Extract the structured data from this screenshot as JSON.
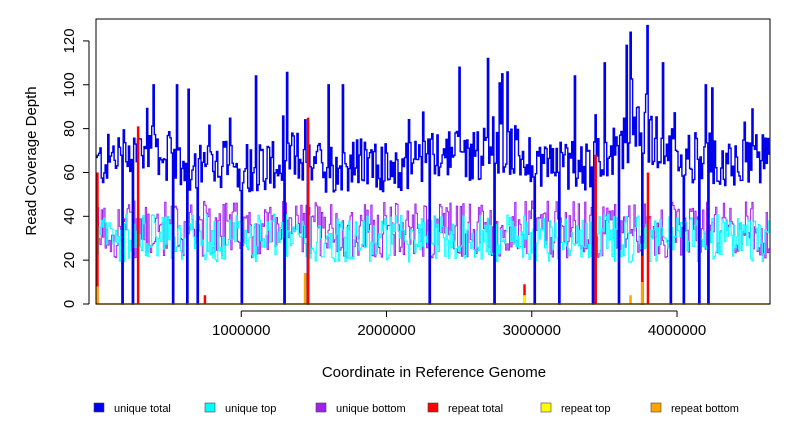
{
  "chart_data": {
    "type": "line",
    "title": "",
    "xlabel": "Coordinate in Reference Genome",
    "ylabel": "Read Coverage Depth",
    "xlim": [
      0,
      4640000
    ],
    "ylim": [
      0,
      130
    ],
    "xticks": [
      1000000,
      2000000,
      3000000,
      4000000
    ],
    "xtick_labels": [
      "1000000",
      "2000000",
      "3000000",
      "4000000"
    ],
    "yticks": [
      0,
      20,
      40,
      60,
      80,
      100,
      120
    ],
    "ytick_labels": [
      "0",
      "20",
      "40",
      "60",
      "80",
      "100",
      "120"
    ],
    "legend_position": "bottom",
    "series": [
      {
        "name": "unique total",
        "color": "#0000ee",
        "x": [
          0,
          200000,
          400000,
          600000,
          800000,
          1000000,
          1200000,
          1400000,
          1600000,
          1800000,
          2000000,
          2200000,
          2400000,
          2600000,
          2800000,
          3000000,
          3200000,
          3400000,
          3600000,
          3700000,
          3800000,
          4000000,
          4200000,
          4400000,
          4640000
        ],
        "values": [
          63,
          70,
          72,
          62,
          66,
          62,
          64,
          68,
          62,
          64,
          62,
          64,
          70,
          68,
          72,
          66,
          64,
          64,
          70,
          80,
          76,
          68,
          66,
          66,
          65
        ],
        "spikes": [
          [
            400000,
            100
          ],
          [
            560000,
            100
          ],
          [
            640000,
            98
          ],
          [
            1100000,
            104
          ],
          [
            1300000,
            100
          ],
          [
            1440000,
            84
          ],
          [
            1600000,
            100
          ],
          [
            1700000,
            100
          ],
          [
            2500000,
            108
          ],
          [
            2700000,
            112
          ],
          [
            2800000,
            105
          ],
          [
            3300000,
            104
          ],
          [
            3500000,
            110
          ],
          [
            3650000,
            118
          ],
          [
            3680000,
            124
          ],
          [
            3800000,
            127
          ],
          [
            3900000,
            110
          ],
          [
            4200000,
            100
          ],
          [
            4520000,
            89
          ]
        ],
        "dips": [
          180000,
          250000,
          530000,
          630000,
          700000,
          1000000,
          1300000,
          1460000,
          2300000,
          2740000,
          3020000,
          3190000,
          3420000,
          3600000,
          3760000,
          3960000,
          4050000,
          4150000,
          4220000
        ]
      },
      {
        "name": "unique top",
        "color": "#00ffff",
        "mean": 30
      },
      {
        "name": "unique bottom",
        "color": "#a020f0",
        "mean": 34
      },
      {
        "name": "repeat total",
        "color": "#ff0000",
        "spikes": [
          [
            10000,
            60
          ],
          [
            290000,
            81
          ],
          [
            750000,
            4
          ],
          [
            1440000,
            14
          ],
          [
            1460000,
            85
          ],
          [
            2950000,
            9
          ],
          [
            3440000,
            68
          ],
          [
            3760000,
            22
          ],
          [
            3800000,
            60
          ]
        ]
      },
      {
        "name": "repeat top",
        "color": "#ffff00",
        "spikes": [
          [
            1440000,
            7
          ],
          [
            2950000,
            4
          ],
          [
            3680000,
            3
          ]
        ]
      },
      {
        "name": "repeat bottom",
        "color": "#ffa500",
        "baseline": 0,
        "spikes": [
          [
            10000,
            8
          ],
          [
            1440000,
            14
          ],
          [
            3680000,
            4
          ],
          [
            3760000,
            10
          ]
        ]
      }
    ]
  }
}
